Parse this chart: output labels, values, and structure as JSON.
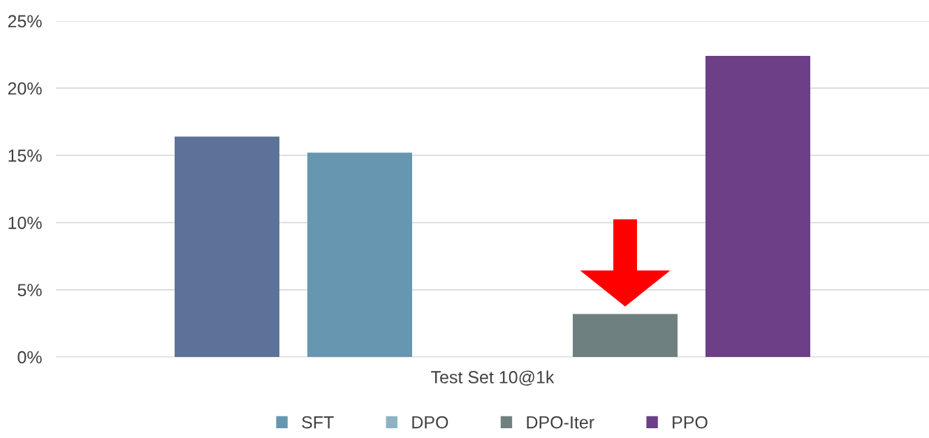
{
  "chart_data": {
    "type": "bar",
    "categories": [
      "Test Set 10@1k"
    ],
    "series": [
      {
        "color": "#5d7298",
        "values": [
          16.4
        ]
      },
      {
        "name": "SFT",
        "color": "#6797b0",
        "values": [
          15.2
        ]
      },
      {
        "name": "DPO",
        "color": "#8db3c3",
        "values": [
          0
        ]
      },
      {
        "name": "DPO-Iter",
        "color": "#6e8080",
        "values": [
          3.2
        ]
      },
      {
        "name": "PPO",
        "color": "#6c3f86",
        "values": [
          22.4
        ]
      }
    ],
    "ylim": [
      0,
      25
    ],
    "yticks": [
      {
        "value": 0,
        "label": "0%"
      },
      {
        "value": 5,
        "label": "5%"
      },
      {
        "value": 10,
        "label": "10%"
      },
      {
        "value": 15,
        "label": "15%"
      },
      {
        "value": 20,
        "label": "20%"
      },
      {
        "value": 25,
        "label": "25%"
      }
    ],
    "grid": "y",
    "legend": "bottom"
  }
}
